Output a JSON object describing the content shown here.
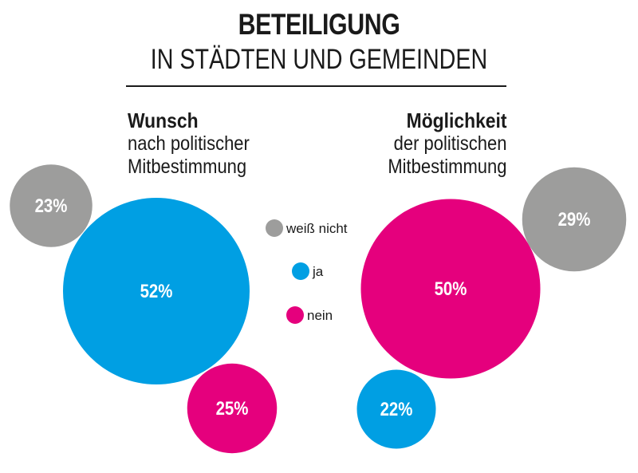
{
  "chart_data": {
    "type": "bubble",
    "title": "BETEILIGUNG",
    "subtitle": "IN STÄDTEN UND GEMEINDEN",
    "legend": [
      {
        "key": "weiss_nicht",
        "label": "weiß nicht",
        "color": "#9d9d9c"
      },
      {
        "key": "ja",
        "label": "ja",
        "color": "#009fe3"
      },
      {
        "key": "nein",
        "label": "nein",
        "color": "#e5007d"
      }
    ],
    "groups": [
      {
        "title": "Wunsch",
        "subtitle_lines": [
          "nach politischer",
          "Mitbestimmung"
        ],
        "values": {
          "weiss_nicht": 23,
          "ja": 52,
          "nein": 25
        },
        "labels": {
          "weiss_nicht": "23%",
          "ja": "52%",
          "nein": "25%"
        }
      },
      {
        "title": "Möglichkeit",
        "subtitle_lines": [
          "der politischen",
          "Mitbestimmung"
        ],
        "values": {
          "weiss_nicht": 29,
          "ja": 22,
          "nein": 50
        },
        "labels": {
          "weiss_nicht": "29%",
          "ja": "22%",
          "nein": "50%"
        }
      }
    ],
    "unit": "%"
  }
}
